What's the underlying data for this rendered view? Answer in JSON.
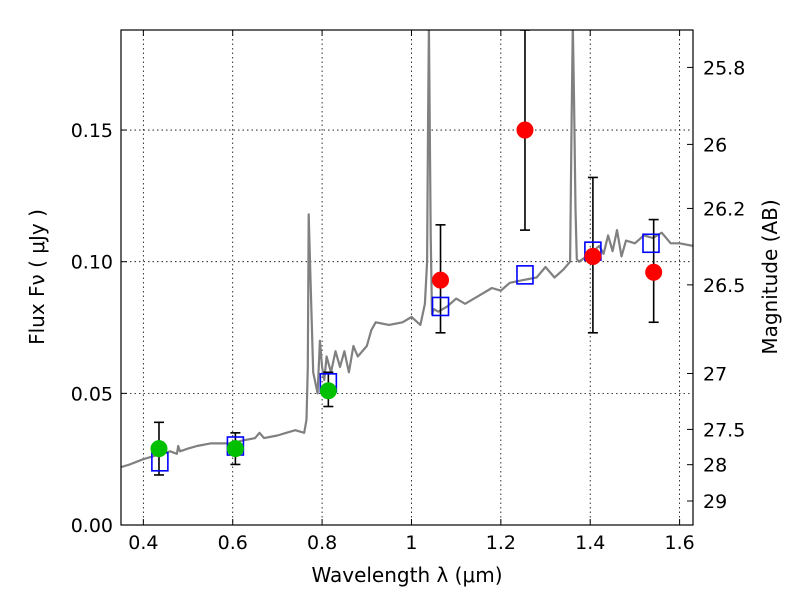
{
  "chart_data": {
    "type": "scatter",
    "xlabel": "Wavelength  λ (μm)",
    "ylabel": "Flux  Fν  ( μJy )",
    "y2label": "Magnitude (AB)",
    "xlim": [
      0.35,
      1.63
    ],
    "ylim": [
      0.0,
      0.188
    ],
    "grid": true,
    "x_ticks": [
      {
        "value": 0.4,
        "label": "0.4"
      },
      {
        "value": 0.6,
        "label": "0.6"
      },
      {
        "value": 0.8,
        "label": "0.8"
      },
      {
        "value": 1.0,
        "label": "1"
      },
      {
        "value": 1.2,
        "label": "1.2"
      },
      {
        "value": 1.4,
        "label": "1.4"
      },
      {
        "value": 1.6,
        "label": "1.6"
      }
    ],
    "y_ticks": [
      {
        "value": 0.0,
        "label": "0.00"
      },
      {
        "value": 0.05,
        "label": "0.05"
      },
      {
        "value": 0.1,
        "label": "0.10"
      },
      {
        "value": 0.15,
        "label": "0.15"
      }
    ],
    "y2_ticks": [
      {
        "mag": 25.8,
        "label": "25.8"
      },
      {
        "mag": 26.0,
        "label": "26"
      },
      {
        "mag": 26.2,
        "label": "26.2"
      },
      {
        "mag": 26.5,
        "label": "26.5"
      },
      {
        "mag": 27.0,
        "label": "27"
      },
      {
        "mag": 27.5,
        "label": "27.5"
      },
      {
        "mag": 28.0,
        "label": "28"
      },
      {
        "mag": 29.0,
        "label": "29"
      }
    ],
    "model_spectrum": {
      "color": "#808080",
      "x": [
        0.35,
        0.37,
        0.4,
        0.42,
        0.44,
        0.46,
        0.475,
        0.478,
        0.482,
        0.5,
        0.52,
        0.55,
        0.58,
        0.6,
        0.62,
        0.65,
        0.66,
        0.67,
        0.7,
        0.72,
        0.74,
        0.76,
        0.765,
        0.768,
        0.77,
        0.773,
        0.78,
        0.79,
        0.795,
        0.8,
        0.805,
        0.81,
        0.82,
        0.83,
        0.84,
        0.85,
        0.86,
        0.87,
        0.88,
        0.9,
        0.91,
        0.92,
        0.95,
        0.98,
        1.0,
        1.02,
        1.03,
        1.035,
        1.037,
        1.039,
        1.041,
        1.043,
        1.046,
        1.05,
        1.06,
        1.08,
        1.1,
        1.12,
        1.15,
        1.18,
        1.2,
        1.22,
        1.25,
        1.28,
        1.3,
        1.32,
        1.34,
        1.355,
        1.358,
        1.361,
        1.364,
        1.367,
        1.37,
        1.375,
        1.4,
        1.42,
        1.43,
        1.44,
        1.45,
        1.46,
        1.47,
        1.48,
        1.5,
        1.52,
        1.54,
        1.56,
        1.58,
        1.6,
        1.63
      ],
      "y": [
        0.022,
        0.023,
        0.025,
        0.026,
        0.027,
        0.028,
        0.027,
        0.03,
        0.028,
        0.029,
        0.03,
        0.031,
        0.031,
        0.031,
        0.032,
        0.033,
        0.035,
        0.033,
        0.034,
        0.035,
        0.036,
        0.035,
        0.04,
        0.06,
        0.118,
        0.1,
        0.058,
        0.05,
        0.07,
        0.06,
        0.055,
        0.064,
        0.058,
        0.066,
        0.06,
        0.066,
        0.058,
        0.068,
        0.064,
        0.068,
        0.074,
        0.077,
        0.076,
        0.077,
        0.079,
        0.076,
        0.084,
        0.1,
        0.15,
        0.19,
        0.15,
        0.11,
        0.08,
        0.082,
        0.081,
        0.083,
        0.086,
        0.084,
        0.087,
        0.09,
        0.089,
        0.092,
        0.093,
        0.094,
        0.098,
        0.094,
        0.097,
        0.1,
        0.15,
        0.19,
        0.16,
        0.12,
        0.101,
        0.1,
        0.103,
        0.106,
        0.103,
        0.11,
        0.104,
        0.112,
        0.102,
        0.108,
        0.107,
        0.11,
        0.109,
        0.111,
        0.107,
        0.107,
        0.106
      ]
    },
    "series": [
      {
        "marker": "square-open",
        "color": "#0000ff",
        "points": [
          {
            "x": 0.437,
            "y": 0.024
          },
          {
            "x": 0.606,
            "y": 0.03
          },
          {
            "x": 0.814,
            "y": 0.054
          },
          {
            "x": 1.065,
            "y": 0.083
          },
          {
            "x": 1.254,
            "y": 0.095
          },
          {
            "x": 1.406,
            "y": 0.104
          },
          {
            "x": 1.536,
            "y": 0.107
          }
        ]
      },
      {
        "marker": "circle",
        "color": "#00c000",
        "points": [
          {
            "x": 0.435,
            "y": 0.029,
            "yerr": [
              0.01,
              0.01
            ]
          },
          {
            "x": 0.606,
            "y": 0.029,
            "yerr": [
              0.006,
              0.006
            ]
          },
          {
            "x": 0.814,
            "y": 0.051,
            "yerr": [
              0.006,
              0.007
            ]
          }
        ]
      },
      {
        "marker": "circle",
        "color": "#ff0000",
        "points": [
          {
            "x": 1.065,
            "y": 0.093,
            "yerr": [
              0.02,
              0.021
            ]
          },
          {
            "x": 1.254,
            "y": 0.15,
            "yerr": [
              0.038,
              0.038
            ]
          },
          {
            "x": 1.406,
            "y": 0.102,
            "yerr": [
              0.029,
              0.03
            ]
          },
          {
            "x": 1.542,
            "y": 0.096,
            "yerr": [
              0.019,
              0.02
            ]
          }
        ]
      }
    ]
  }
}
